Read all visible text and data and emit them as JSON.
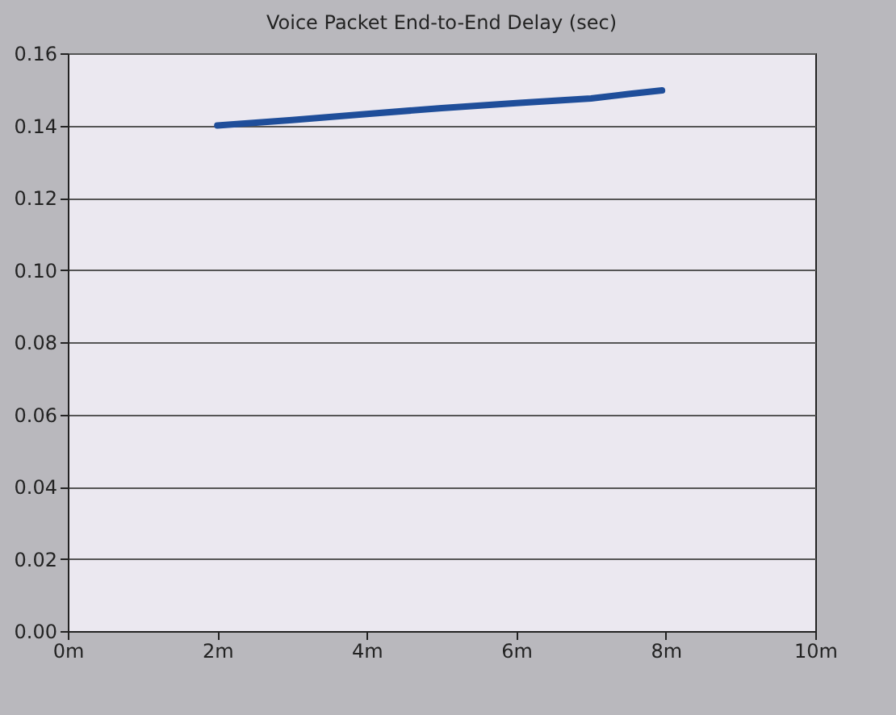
{
  "chart_data": {
    "type": "line",
    "title": "Voice Packet End-to-End Delay (sec)",
    "x": [
      2,
      3,
      4,
      5,
      6,
      7,
      7.5,
      7.95
    ],
    "series": [
      {
        "color": "#1f4e9a",
        "values": [
          0.14,
          0.1415,
          0.1432,
          0.1448,
          0.1462,
          0.1475,
          0.1487,
          0.1497
        ]
      }
    ],
    "xlim": [
      0,
      10
    ],
    "xticks": [
      {
        "value": 0,
        "label": "0m"
      },
      {
        "value": 2,
        "label": "2m"
      },
      {
        "value": 4,
        "label": "4m"
      },
      {
        "value": 6,
        "label": "6m"
      },
      {
        "value": 8,
        "label": "8m"
      },
      {
        "value": 10,
        "label": "10m"
      }
    ],
    "ylim": [
      0,
      0.16
    ],
    "yticks": [
      {
        "value": 0,
        "label": "0.00"
      },
      {
        "value": 0.02,
        "label": "0.02"
      },
      {
        "value": 0.04,
        "label": "0.04"
      },
      {
        "value": 0.06,
        "label": "0.06"
      },
      {
        "value": 0.08,
        "label": "0.08"
      },
      {
        "value": 0.1,
        "label": "0.10"
      },
      {
        "value": 0.12,
        "label": "0.12"
      },
      {
        "value": 0.14,
        "label": "0.14"
      },
      {
        "value": 0.16,
        "label": "0.16"
      }
    ],
    "grid": "y",
    "legend": false,
    "line_style": "solid",
    "marker": "none"
  }
}
